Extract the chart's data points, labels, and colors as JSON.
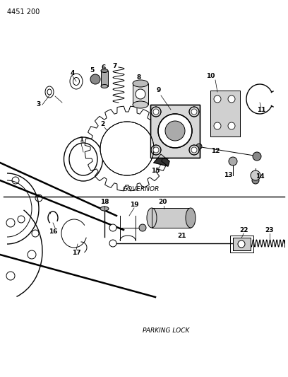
{
  "title": "4451 200",
  "governor_label": "GOVERNOR",
  "parking_label": "PARKING LOCK",
  "bg_color": "#ffffff",
  "line_color": "#000000"
}
